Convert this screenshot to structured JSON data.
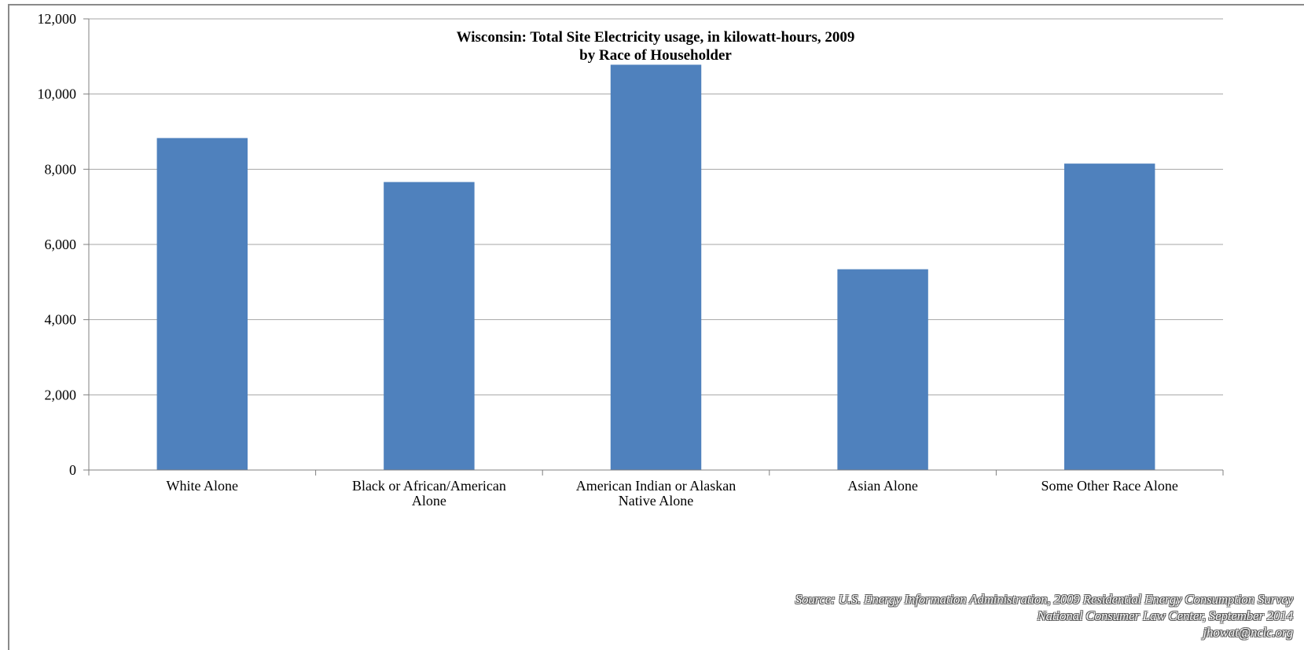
{
  "chart_data": {
    "type": "bar",
    "title": "Wisconsin: Total Site Electricity usage, in kilowatt-hours, 2009",
    "subtitle": "by Race of Householder",
    "categories": [
      [
        "White Alone"
      ],
      [
        "Black or African/American",
        "Alone"
      ],
      [
        "American Indian or Alaskan",
        "Native Alone"
      ],
      [
        "Asian Alone"
      ],
      [
        "Some Other Race Alone"
      ]
    ],
    "values": [
      8830,
      7660,
      10780,
      5340,
      8150
    ],
    "ylim": [
      0,
      12000
    ],
    "yticks": [
      "0",
      "2,000",
      "4,000",
      "6,000",
      "8,000",
      "10,000",
      "12,000"
    ],
    "ytick_values": [
      0,
      2000,
      4000,
      6000,
      8000,
      10000,
      12000
    ],
    "grid": true,
    "legend": "none",
    "bar_color": "#4f81bd",
    "grid_color": "#a6a6a6"
  },
  "source": {
    "line1": "Source: U.S. Energy Information Administration, 2009 Residential Energy Consumption Survey",
    "line2": "National Consumer Law Center, September 2014",
    "line3": "jhowat@nclc.org"
  }
}
